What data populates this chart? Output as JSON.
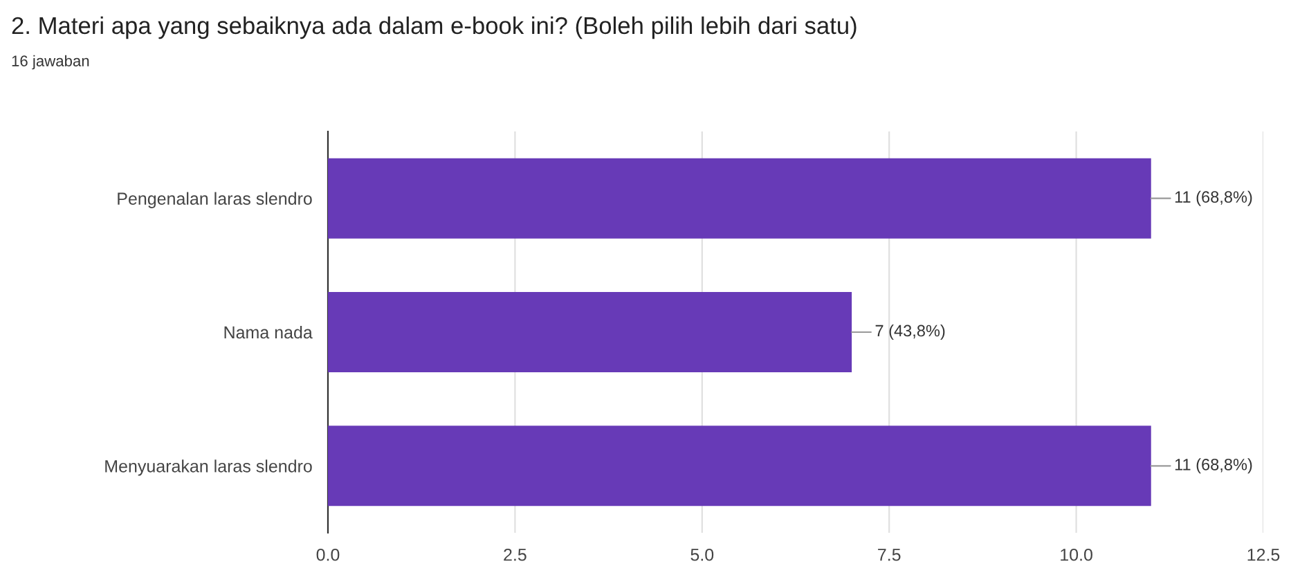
{
  "chart_data": {
    "type": "bar",
    "orientation": "horizontal",
    "title": "2. Materi apa yang sebaiknya ada dalam e-book ini? (Boleh pilih lebih dari satu)",
    "subtitle": "16 jawaban",
    "categories": [
      "Pengenalan laras slendro",
      "Nama nada",
      "Menyuarakan laras slendro"
    ],
    "values": [
      11,
      7,
      11
    ],
    "value_labels": [
      "11 (68,8%)",
      "7 (43,8%)",
      "11 (68,8%)"
    ],
    "color": "#673ab7",
    "xlim": [
      0,
      12.5
    ],
    "xticks": [
      {
        "value": 0,
        "label": "0.0"
      },
      2.5,
      {
        "value": 5,
        "label": "5.0"
      },
      7.5,
      {
        "value": 10,
        "label": "10.0"
      },
      12.5
    ],
    "grid": "x",
    "legend": false
  }
}
